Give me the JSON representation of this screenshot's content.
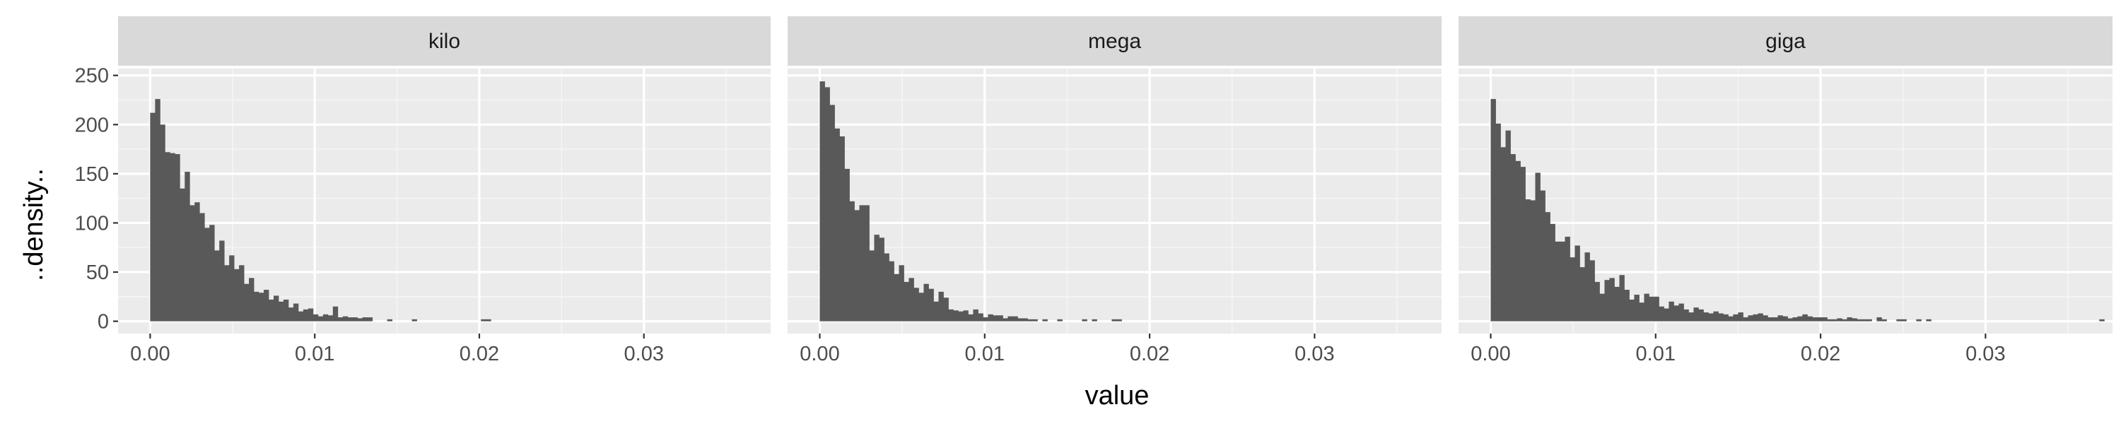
{
  "chart_data": {
    "type": "histogram",
    "facets": [
      {
        "label": "kilo",
        "bin_start": 0.0,
        "bin_width": 0.0003,
        "values": [
          212,
          226,
          200,
          172,
          171,
          170,
          135,
          152,
          118,
          121,
          110,
          95,
          98,
          72,
          82,
          57,
          67,
          53,
          57,
          38,
          44,
          30,
          29,
          32,
          22,
          26,
          20,
          22,
          14,
          18,
          10,
          12,
          13,
          7,
          5,
          7,
          6,
          15,
          4,
          5,
          4,
          4,
          3,
          4,
          4,
          0,
          0,
          0,
          2,
          0,
          0,
          0,
          0,
          2,
          0,
          0,
          0,
          0,
          0,
          0,
          0,
          0,
          0,
          0,
          0,
          0,
          0,
          2,
          2,
          0,
          0,
          0,
          0,
          0,
          0,
          0,
          0,
          0,
          0,
          0,
          0,
          0,
          0,
          0,
          0,
          0,
          0,
          0,
          0,
          0,
          0,
          0,
          0,
          0,
          0,
          0,
          0,
          0,
          0,
          0,
          0,
          0,
          0,
          0,
          0,
          0,
          0,
          0,
          0,
          0,
          0,
          0,
          0,
          0,
          0,
          0,
          0,
          0,
          0,
          0,
          0,
          0
        ]
      },
      {
        "label": "mega",
        "bin_start": 0.0,
        "bin_width": 0.0003,
        "values": [
          244,
          238,
          220,
          196,
          188,
          155,
          122,
          113,
          118,
          118,
          72,
          88,
          85,
          69,
          61,
          48,
          57,
          40,
          44,
          34,
          29,
          38,
          33,
          20,
          30,
          24,
          12,
          11,
          10,
          11,
          7,
          12,
          8,
          4,
          7,
          6,
          6,
          3,
          5,
          5,
          3,
          3,
          2,
          2,
          0,
          2,
          0,
          0,
          2,
          0,
          0,
          0,
          0,
          2,
          0,
          2,
          0,
          0,
          0,
          2,
          2,
          0,
          0,
          0,
          0,
          0,
          0,
          0,
          0,
          0,
          0,
          0,
          0,
          0,
          0,
          0,
          0,
          0,
          0,
          0,
          0,
          0,
          0,
          0,
          0,
          0,
          0,
          0,
          0,
          0,
          0,
          0,
          0,
          0,
          0,
          0,
          0,
          0,
          0,
          0,
          0,
          0,
          0,
          0,
          0,
          0,
          0,
          0,
          0,
          0,
          0,
          0,
          0,
          0,
          0,
          0,
          0,
          0,
          0,
          0,
          0,
          0
        ]
      },
      {
        "label": "giga",
        "bin_start": 0.0,
        "bin_width": 0.0003,
        "values": [
          226,
          201,
          177,
          194,
          170,
          163,
          157,
          124,
          123,
          151,
          133,
          111,
          99,
          81,
          81,
          86,
          65,
          77,
          55,
          70,
          62,
          40,
          28,
          42,
          44,
          35,
          47,
          32,
          22,
          27,
          19,
          28,
          25,
          25,
          15,
          13,
          20,
          16,
          18,
          12,
          9,
          14,
          12,
          9,
          8,
          10,
          8,
          7,
          5,
          7,
          9,
          4,
          6,
          7,
          8,
          6,
          4,
          4,
          6,
          5,
          3,
          4,
          5,
          7,
          5,
          4,
          4,
          4,
          2,
          2,
          3,
          2,
          4,
          3,
          2,
          2,
          2,
          0,
          4,
          2,
          0,
          0,
          2,
          2,
          0,
          0,
          2,
          0,
          2,
          0,
          0,
          0,
          0,
          0,
          0,
          0,
          0,
          0,
          0,
          0,
          0,
          0,
          0,
          0,
          0,
          0,
          0,
          0,
          0,
          0,
          0,
          0,
          0,
          0,
          0,
          0,
          0,
          0,
          0,
          0,
          0,
          0,
          0,
          2,
          0
        ]
      }
    ],
    "x_ticks": [
      0.0,
      0.01,
      0.02,
      0.03
    ],
    "x_tick_labels": [
      "0.00",
      "0.01",
      "0.02",
      "0.03"
    ],
    "y_ticks": [
      0,
      50,
      100,
      150,
      200,
      250
    ],
    "y_tick_labels": [
      "0",
      "50",
      "100",
      "150",
      "200",
      "250"
    ],
    "xlim": [
      -0.00195,
      0.0377
    ],
    "ylim": [
      -12.5,
      257
    ],
    "xlabel": "value",
    "ylabel": "..density..",
    "colors": {
      "bar": "#595959",
      "panel_background": "#ebebeb",
      "strip_background": "#d9d9d9",
      "grid_major": "#ffffff",
      "grid_minor": "#f5f5f5",
      "tick_text": "#4d4d4d",
      "tick_mark": "#333333"
    }
  }
}
